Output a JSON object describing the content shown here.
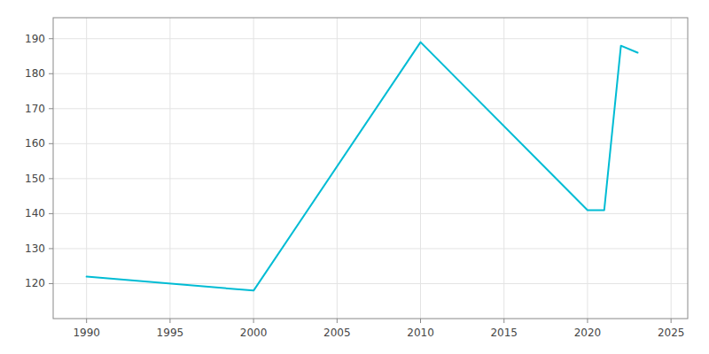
{
  "chart_data": {
    "type": "line",
    "x": [
      1990,
      2000,
      2010,
      2020,
      2021,
      2022,
      2023
    ],
    "values": [
      122,
      118,
      189,
      141,
      141,
      188,
      186
    ],
    "color": "#00bcd4",
    "xlim": [
      1988,
      2026
    ],
    "ylim": [
      110,
      196
    ],
    "xticks": [
      1990,
      1995,
      2000,
      2005,
      2010,
      2015,
      2020,
      2025
    ],
    "yticks": [
      120,
      130,
      140,
      150,
      160,
      170,
      180,
      190
    ],
    "grid": true
  }
}
